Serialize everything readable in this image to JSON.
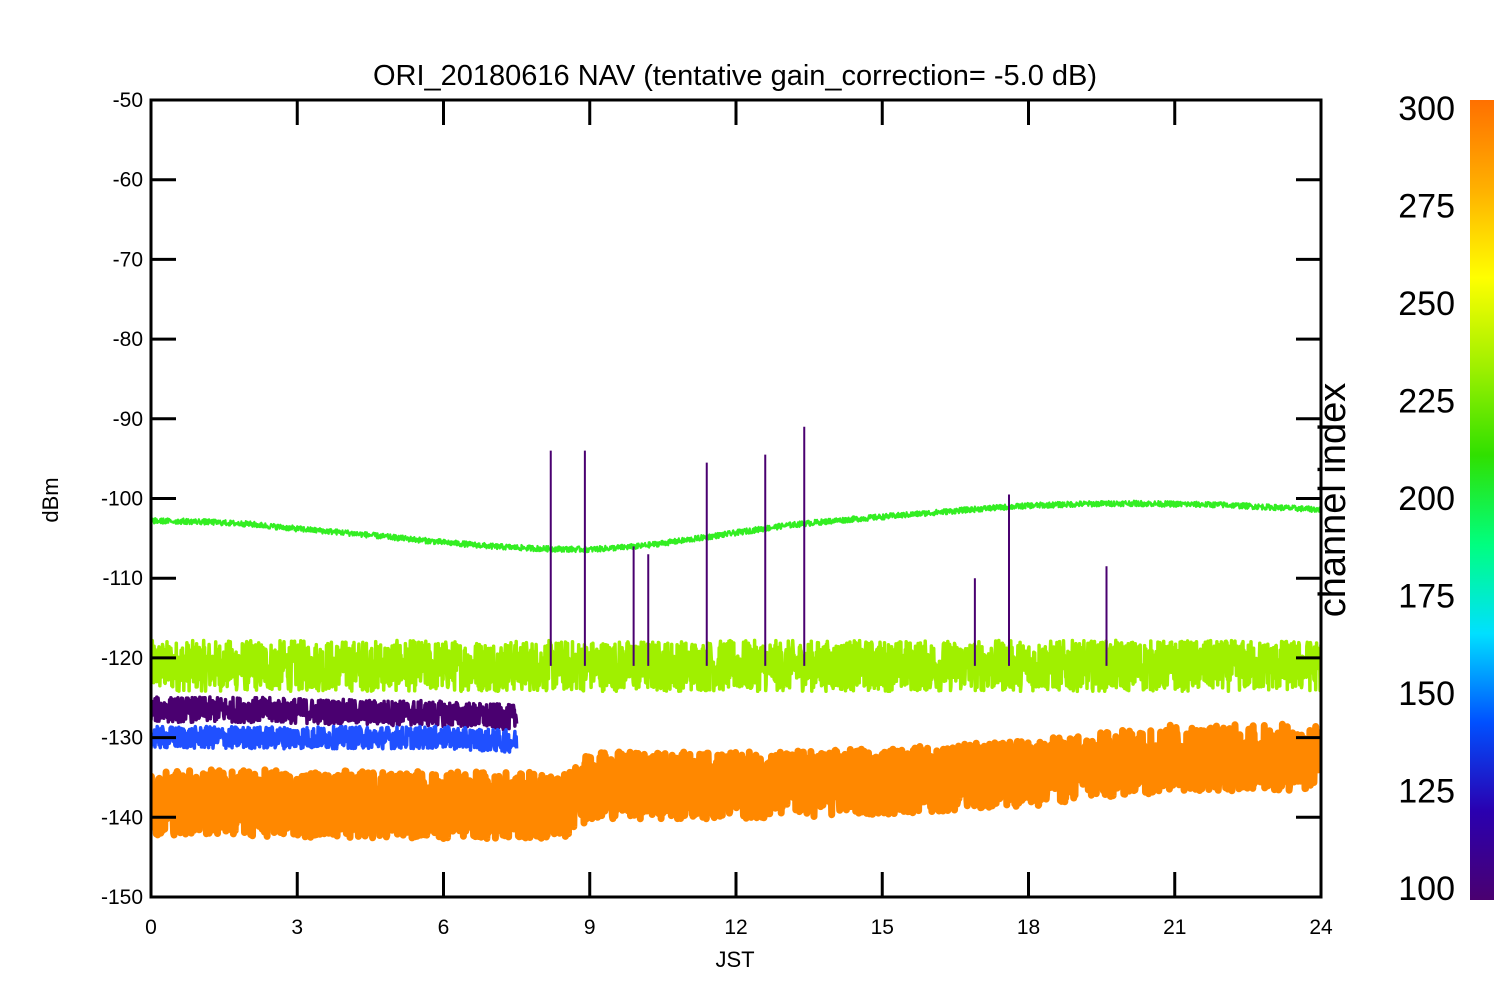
{
  "chart_data": {
    "type": "line",
    "title": "ORI_20180616 NAV (tentative gain_correction= -5.0 dB)",
    "xlabel": "JST",
    "ylabel": "dBm",
    "xlim": [
      0,
      24
    ],
    "ylim": [
      -150,
      -50
    ],
    "x_ticks": [
      "0",
      "3",
      "6",
      "9",
      "12",
      "15",
      "18",
      "21",
      "24"
    ],
    "y_ticks": [
      "-50",
      "-60",
      "-70",
      "-80",
      "-90",
      "-100",
      "-110",
      "-120",
      "-130",
      "-140",
      "-150"
    ],
    "grid": false,
    "colorbar": {
      "label": "channel index",
      "range": [
        100,
        300
      ],
      "ticks": [
        "300",
        "275",
        "250",
        "225",
        "200",
        "175",
        "150",
        "125",
        "100"
      ],
      "colormap": [
        "#4a0070",
        "#2a00b0",
        "#0050ff",
        "#00e0ff",
        "#00ff80",
        "#30e000",
        "#a0f000",
        "#ffff00",
        "#ffb000",
        "#ff7000"
      ]
    },
    "series": [
      {
        "color": "#33ee22",
        "x": [
          0,
          1,
          2,
          3,
          4,
          5,
          6,
          7,
          8,
          9,
          10,
          11,
          12,
          13,
          14,
          15,
          16,
          17,
          18,
          19,
          20,
          21,
          22,
          23,
          24
        ],
        "values": [
          -102.8,
          -102.9,
          -103.2,
          -103.8,
          -104.3,
          -104.9,
          -105.5,
          -106.0,
          -106.3,
          -106.4,
          -106.0,
          -105.2,
          -104.3,
          -103.4,
          -102.8,
          -102.3,
          -101.8,
          -101.3,
          -100.9,
          -100.7,
          -100.6,
          -100.7,
          -100.8,
          -101.1,
          -101.4
        ]
      },
      {
        "color": "#a0f000",
        "x": [
          0,
          3,
          6,
          9,
          12,
          15,
          18,
          21,
          24
        ],
        "values": [
          -121,
          -121,
          -121,
          -121,
          -121,
          -121,
          -121,
          -121,
          -121
        ]
      },
      {
        "color": "#4a0070",
        "x": [
          0,
          2,
          4,
          6,
          7.5
        ],
        "values": [
          -126.5,
          -126.5,
          -126.8,
          -127,
          -127.5
        ]
      },
      {
        "color": "#2050ff",
        "x": [
          0,
          2,
          4,
          6,
          7.5
        ],
        "values": [
          -130,
          -130,
          -130,
          -130,
          -130.5
        ]
      },
      {
        "color": "#ff8800",
        "x": [
          0,
          3,
          6,
          8.5,
          9,
          12,
          15,
          18,
          21,
          24
        ],
        "values": [
          -138,
          -138.3,
          -138.5,
          -138.5,
          -136,
          -136,
          -135.5,
          -134.5,
          -132.5,
          -132.5
        ]
      }
    ],
    "spikes": {
      "color": "#4a0070",
      "x": [
        8.2,
        8.9,
        9.9,
        10.2,
        11.4,
        12.6,
        13.4,
        16.9,
        17.6,
        19.6
      ],
      "peak": [
        -94,
        -94,
        -106,
        -107,
        -95.5,
        -94.5,
        -91,
        -110,
        -99.5,
        -108.5
      ]
    }
  }
}
